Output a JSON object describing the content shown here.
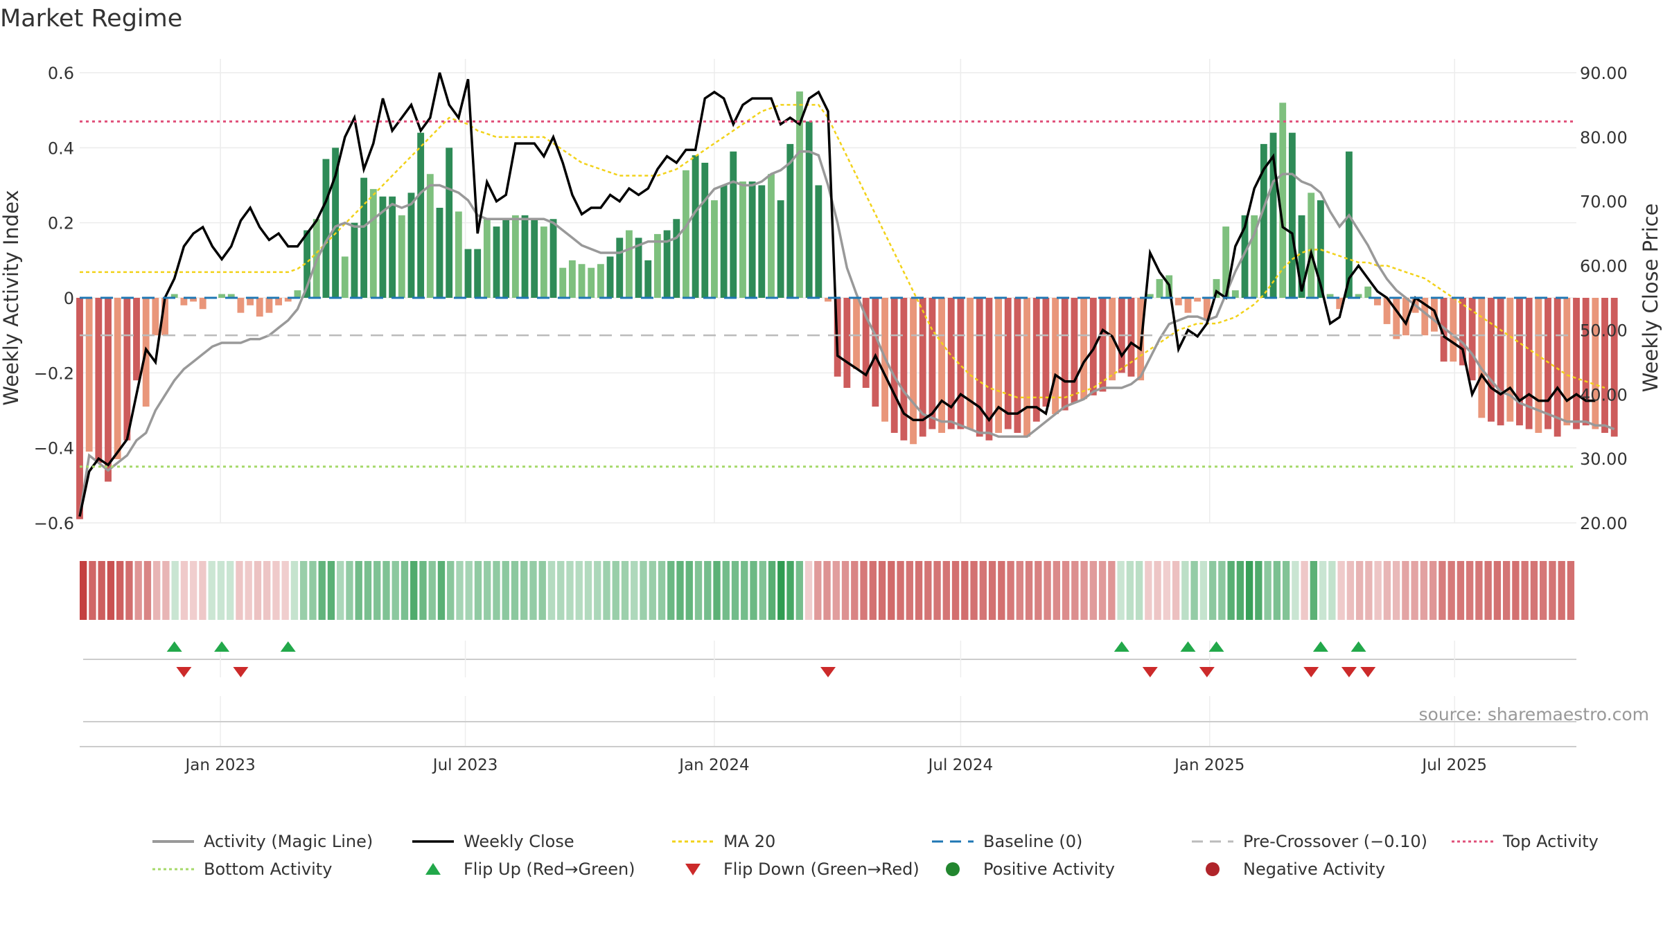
{
  "title": "Market Regime",
  "source": "source: sharemaestro.com",
  "colors": {
    "pos_dark": "#2e8b57",
    "pos_light": "#7ec07e",
    "neg_dark": "#cd5c5c",
    "neg_light": "#e9967a",
    "magic": "#999999",
    "close": "#000000",
    "ma20": "#f2d21a",
    "baseline": "#1f77b4",
    "precross": "#bbbbbb",
    "top": "#e0507a",
    "bottom": "#a6d96a",
    "up": "#22a84a",
    "down": "#cc2a2a"
  },
  "chart_data": {
    "type": "bar+line",
    "xlabel": "",
    "ylabel": "Weekly Activity Index",
    "y2label": "Weekly Close Price",
    "ylim": [
      -0.6,
      0.6
    ],
    "y_ticks": [
      -0.6,
      -0.4,
      -0.2,
      0,
      0.2,
      0.4,
      0.6
    ],
    "y_tick_labels": [
      "−0.6",
      "−0.4",
      "−0.2",
      "0",
      "0.2",
      "0.4",
      "0.6"
    ],
    "y2lim": [
      20,
      90
    ],
    "y2_ticks": [
      20,
      30,
      40,
      50,
      60,
      70,
      80,
      90
    ],
    "y2_tick_labels": [
      "20.00",
      "30.00",
      "40.00",
      "50.00",
      "60.00",
      "70.00",
      "80.00",
      "90.00"
    ],
    "x_ticks": [
      {
        "date": "2023-01-01",
        "label": "Jan 2023"
      },
      {
        "date": "2023-07-01",
        "label": "Jul 2023"
      },
      {
        "date": "2024-01-01",
        "label": "Jan 2024"
      },
      {
        "date": "2024-07-01",
        "label": "Jul 2024"
      },
      {
        "date": "2025-01-01",
        "label": "Jan 2025"
      },
      {
        "date": "2025-07-01",
        "label": "Jul 2025"
      }
    ],
    "x_range": [
      "2022-09-19",
      "2025-09-29"
    ],
    "first_week": "2022-09-19",
    "top_activity": 0.47,
    "bottom_activity": -0.45,
    "baseline": 0,
    "pre_crossover": -0.1,
    "activity": [
      -0.59,
      -0.41,
      -0.44,
      -0.49,
      -0.43,
      -0.38,
      -0.22,
      -0.29,
      -0.1,
      -0.1,
      0.01,
      -0.02,
      -0.01,
      -0.03,
      0.0,
      0.01,
      0.01,
      -0.04,
      -0.02,
      -0.05,
      -0.04,
      -0.02,
      -0.01,
      0.02,
      0.18,
      0.21,
      0.37,
      0.4,
      0.11,
      0.2,
      0.32,
      0.29,
      0.27,
      0.27,
      0.22,
      0.28,
      0.44,
      0.33,
      0.24,
      0.4,
      0.23,
      0.13,
      0.13,
      0.21,
      0.19,
      0.21,
      0.22,
      0.22,
      0.21,
      0.19,
      0.21,
      0.08,
      0.1,
      0.09,
      0.08,
      0.09,
      0.11,
      0.16,
      0.18,
      0.16,
      0.1,
      0.17,
      0.18,
      0.21,
      0.34,
      0.38,
      0.36,
      0.26,
      0.3,
      0.39,
      0.31,
      0.31,
      0.3,
      0.33,
      0.26,
      0.41,
      0.55,
      0.47,
      0.3,
      -0.01,
      -0.21,
      -0.24,
      -0.19,
      -0.24,
      -0.29,
      -0.33,
      -0.36,
      -0.38,
      -0.39,
      -0.37,
      -0.35,
      -0.36,
      -0.35,
      -0.35,
      -0.35,
      -0.37,
      -0.38,
      -0.36,
      -0.35,
      -0.36,
      -0.37,
      -0.33,
      -0.29,
      -0.31,
      -0.3,
      -0.28,
      -0.27,
      -0.26,
      -0.25,
      -0.22,
      -0.2,
      -0.21,
      -0.22,
      0.01,
      0.05,
      0.06,
      -0.02,
      -0.04,
      -0.01,
      -0.06,
      0.05,
      0.19,
      0.02,
      0.22,
      0.22,
      0.41,
      0.44,
      0.52,
      0.44,
      0.22,
      0.28,
      0.26,
      0.01,
      -0.03,
      0.39,
      0.01,
      0.03,
      -0.02,
      -0.07,
      -0.11,
      -0.1,
      -0.04,
      -0.1,
      -0.09,
      -0.17,
      -0.17,
      -0.18,
      -0.22,
      -0.32,
      -0.33,
      -0.34,
      -0.33,
      -0.34,
      -0.35,
      -0.36,
      -0.35,
      -0.37,
      -0.34,
      -0.35,
      -0.34,
      -0.35,
      -0.36,
      -0.37
    ],
    "weekly_close": [
      21.0,
      28.0,
      30.0,
      29.0,
      31.0,
      33.0,
      40.0,
      47.0,
      45.0,
      55.0,
      58.0,
      63.0,
      65.0,
      66.0,
      63.0,
      61.0,
      63.0,
      67.0,
      69.0,
      66.0,
      64.0,
      65.0,
      63.0,
      63.0,
      65.0,
      67.0,
      70.0,
      74.0,
      80.0,
      83.0,
      75.0,
      79.0,
      86.0,
      81.0,
      83.0,
      85.0,
      81.0,
      83.0,
      90.0,
      85.0,
      83.0,
      89.0,
      65.0,
      73.0,
      70.0,
      71.0,
      79.0,
      79.0,
      79.0,
      77.0,
      80.0,
      76.0,
      71.0,
      68.0,
      69.0,
      69.0,
      71.0,
      70.0,
      72.0,
      71.0,
      72.0,
      75.0,
      77.0,
      76.0,
      78.0,
      78.0,
      86.0,
      87.0,
      86.0,
      82.0,
      85.0,
      86.0,
      86.0,
      86.0,
      82.0,
      83.0,
      82.0,
      86.0,
      87.0,
      84.0,
      46.0,
      45.0,
      44.0,
      43.0,
      46.0,
      43.0,
      40.0,
      37.0,
      36.0,
      36.0,
      37.0,
      39.0,
      38.0,
      40.0,
      39.0,
      38.0,
      36.0,
      38.0,
      37.0,
      37.0,
      38.0,
      38.0,
      37.0,
      43.0,
      42.0,
      42.0,
      45.0,
      47.0,
      50.0,
      49.0,
      46.0,
      48.0,
      47.0,
      62.0,
      59.0,
      57.0,
      47.0,
      50.0,
      49.0,
      51.0,
      56.0,
      55.0,
      63.0,
      66.0,
      72.0,
      75.0,
      77.0,
      66.0,
      65.0,
      56.0,
      62.0,
      57.0,
      51.0,
      52.0,
      58.0,
      60.0,
      58.0,
      56.0,
      55.0,
      53.0,
      51.0,
      55.0,
      54.0,
      53.0,
      49.0,
      48.0,
      47.0,
      40.0,
      43.0,
      41.0,
      40.0,
      41.0,
      39.0,
      40.0,
      39.0,
      39.0,
      41.0,
      39.0,
      40.0,
      39.0,
      39.0
    ],
    "magic_line": [
      -0.58,
      -0.42,
      -0.44,
      -0.46,
      -0.44,
      -0.42,
      -0.38,
      -0.36,
      -0.3,
      -0.26,
      -0.22,
      -0.19,
      -0.17,
      -0.15,
      -0.13,
      -0.12,
      -0.12,
      -0.12,
      -0.11,
      -0.11,
      -0.1,
      -0.08,
      -0.06,
      -0.03,
      0.03,
      0.1,
      0.15,
      0.19,
      0.2,
      0.19,
      0.19,
      0.21,
      0.23,
      0.25,
      0.24,
      0.25,
      0.28,
      0.3,
      0.3,
      0.29,
      0.28,
      0.26,
      0.22,
      0.21,
      0.21,
      0.21,
      0.21,
      0.21,
      0.21,
      0.21,
      0.2,
      0.18,
      0.16,
      0.14,
      0.13,
      0.12,
      0.12,
      0.12,
      0.13,
      0.14,
      0.15,
      0.15,
      0.15,
      0.16,
      0.19,
      0.23,
      0.26,
      0.29,
      0.3,
      0.31,
      0.3,
      0.3,
      0.31,
      0.33,
      0.34,
      0.36,
      0.39,
      0.39,
      0.38,
      0.3,
      0.2,
      0.08,
      0.01,
      -0.05,
      -0.1,
      -0.16,
      -0.21,
      -0.25,
      -0.28,
      -0.31,
      -0.32,
      -0.33,
      -0.33,
      -0.34,
      -0.35,
      -0.36,
      -0.36,
      -0.37,
      -0.37,
      -0.37,
      -0.37,
      -0.35,
      -0.33,
      -0.31,
      -0.29,
      -0.28,
      -0.27,
      -0.25,
      -0.24,
      -0.24,
      -0.24,
      -0.23,
      -0.21,
      -0.16,
      -0.11,
      -0.07,
      -0.06,
      -0.05,
      -0.05,
      -0.06,
      -0.05,
      0.01,
      0.07,
      0.12,
      0.17,
      0.24,
      0.31,
      0.33,
      0.33,
      0.31,
      0.3,
      0.28,
      0.23,
      0.19,
      0.22,
      0.18,
      0.14,
      0.09,
      0.05,
      0.02,
      0.0,
      -0.02,
      -0.04,
      -0.06,
      -0.08,
      -0.1,
      -0.12,
      -0.15,
      -0.19,
      -0.22,
      -0.25,
      -0.26,
      -0.28,
      -0.29,
      -0.3,
      -0.31,
      -0.32,
      -0.33,
      -0.33,
      -0.33,
      -0.34,
      -0.34,
      -0.35
    ],
    "ma20": [
      59.0,
      59.0,
      59.0,
      59.0,
      59.0,
      59.0,
      59.0,
      59.0,
      59.0,
      59.0,
      59.0,
      59.0,
      59.0,
      59.0,
      59.0,
      59.0,
      59.0,
      59.0,
      59.0,
      59.0,
      59.0,
      59.0,
      59.0,
      59.5,
      60.5,
      62.0,
      63.5,
      65.0,
      66.5,
      68.0,
      69.5,
      71.0,
      72.5,
      74.0,
      75.5,
      77.0,
      78.5,
      80.0,
      81.5,
      83.0,
      82.5,
      82.0,
      81.0,
      80.5,
      80.0,
      80.0,
      80.0,
      80.0,
      80.0,
      80.0,
      79.0,
      78.0,
      77.0,
      76.0,
      75.5,
      75.0,
      74.5,
      74.0,
      74.0,
      74.0,
      74.0,
      74.0,
      74.5,
      75.0,
      76.0,
      77.0,
      78.0,
      79.0,
      80.0,
      81.0,
      82.0,
      83.0,
      84.0,
      84.5,
      85.0,
      85.0,
      85.0,
      85.0,
      85.0,
      83.0,
      80.0,
      77.0,
      74.0,
      71.0,
      68.0,
      65.0,
      62.0,
      59.0,
      56.0,
      53.0,
      50.0,
      48.0,
      46.0,
      44.5,
      43.0,
      42.0,
      41.0,
      40.5,
      40.0,
      39.5,
      39.5,
      39.5,
      39.5,
      39.5,
      39.5,
      40.0,
      40.5,
      41.0,
      42.0,
      43.0,
      44.0,
      45.0,
      46.0,
      47.0,
      48.0,
      49.0,
      50.0,
      50.5,
      51.0,
      51.0,
      51.0,
      51.5,
      52.0,
      53.0,
      54.0,
      55.5,
      57.5,
      59.5,
      61.0,
      62.0,
      62.5,
      62.5,
      62.0,
      61.5,
      61.0,
      60.5,
      60.5,
      60.0,
      60.0,
      59.5,
      59.0,
      58.5,
      58.0,
      57.0,
      56.0,
      55.0,
      54.0,
      53.0,
      52.0,
      51.0,
      50.0,
      49.0,
      48.0,
      47.0,
      46.0,
      45.0,
      44.0,
      43.0,
      42.5,
      42.0,
      41.5,
      41.0
    ],
    "flip_up_weeks": [
      10,
      15,
      22,
      110,
      117,
      120,
      131,
      135
    ],
    "flip_down_weeks": [
      11,
      17,
      79,
      113,
      119,
      130,
      134,
      136
    ],
    "legend": [
      "Activity (Magic Line)",
      "Weekly Close",
      "MA 20",
      "Baseline (0)",
      "Pre-Crossover (−0.10)",
      "Top Activity",
      "Bottom Activity",
      "Flip Up (Red→Green)",
      "Flip Down (Green→Red)",
      "Positive Activity",
      "Negative Activity"
    ]
  }
}
